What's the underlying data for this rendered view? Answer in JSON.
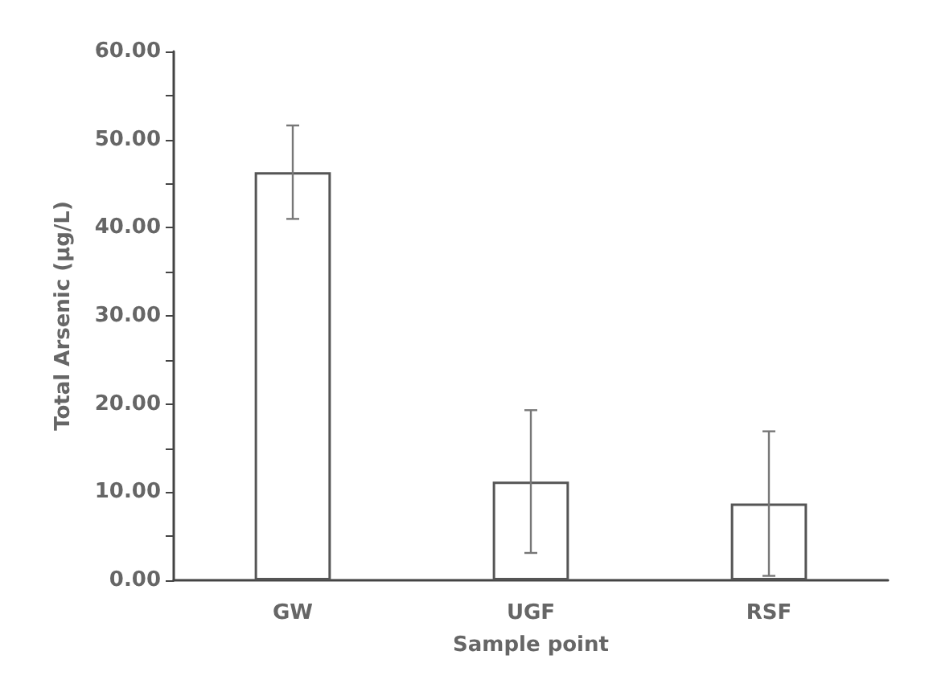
{
  "chart_data": {
    "type": "bar",
    "xlabel": "Sample point",
    "ylabel": "Total Arsenic (µg/L)",
    "categories": [
      "GW",
      "UGF",
      "RSF"
    ],
    "series": [
      {
        "color": "#ffffff",
        "values": [
          46.3,
          11.2,
          8.7
        ],
        "errors": [
          5.3,
          8.1,
          8.2
        ]
      }
    ],
    "ylim": [
      0,
      60
    ],
    "yticks": [
      {
        "value": 0,
        "label": "0.00"
      },
      {
        "value": 5,
        "label": null
      },
      {
        "value": 10,
        "label": "10.00"
      },
      {
        "value": 15,
        "label": null
      },
      {
        "value": 20,
        "label": "20.00"
      },
      {
        "value": 25,
        "label": null
      },
      {
        "value": 30,
        "label": "30.00"
      },
      {
        "value": 35,
        "label": null
      },
      {
        "value": 40,
        "label": "40.00"
      },
      {
        "value": 45,
        "label": null
      },
      {
        "value": 50,
        "label": "50.00"
      },
      {
        "value": 55,
        "label": null
      },
      {
        "value": 60,
        "label": "60.00"
      }
    ],
    "grid": false,
    "legend": false
  }
}
